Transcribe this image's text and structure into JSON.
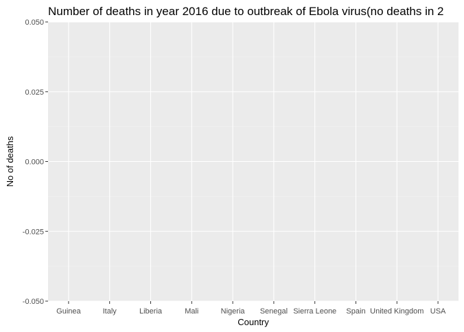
{
  "chart_data": {
    "type": "bar",
    "title": "Number of deaths in year 2016 due to outbreak of Ebola virus(no deaths in 2",
    "xlabel": "Country",
    "ylabel": "No of deaths",
    "categories": [
      "Guinea",
      "Italy",
      "Liberia",
      "Mali",
      "Nigeria",
      "Senegal",
      "Sierra Leone",
      "Spain",
      "United Kingdom",
      "USA"
    ],
    "values": [
      0,
      0,
      0,
      0,
      0,
      0,
      0,
      0,
      0,
      0
    ],
    "y_ticks": [
      "-0.050",
      "-0.025",
      "0.000",
      "0.025",
      "0.050"
    ],
    "ylim": [
      -0.05,
      0.05
    ],
    "grid": true,
    "colors": {
      "panel_background": "#ebebeb",
      "grid_major": "#ffffff",
      "grid_minor": "#f5f5f5",
      "tick_text": "#4d4d4d",
      "title_text": "#000000"
    }
  }
}
